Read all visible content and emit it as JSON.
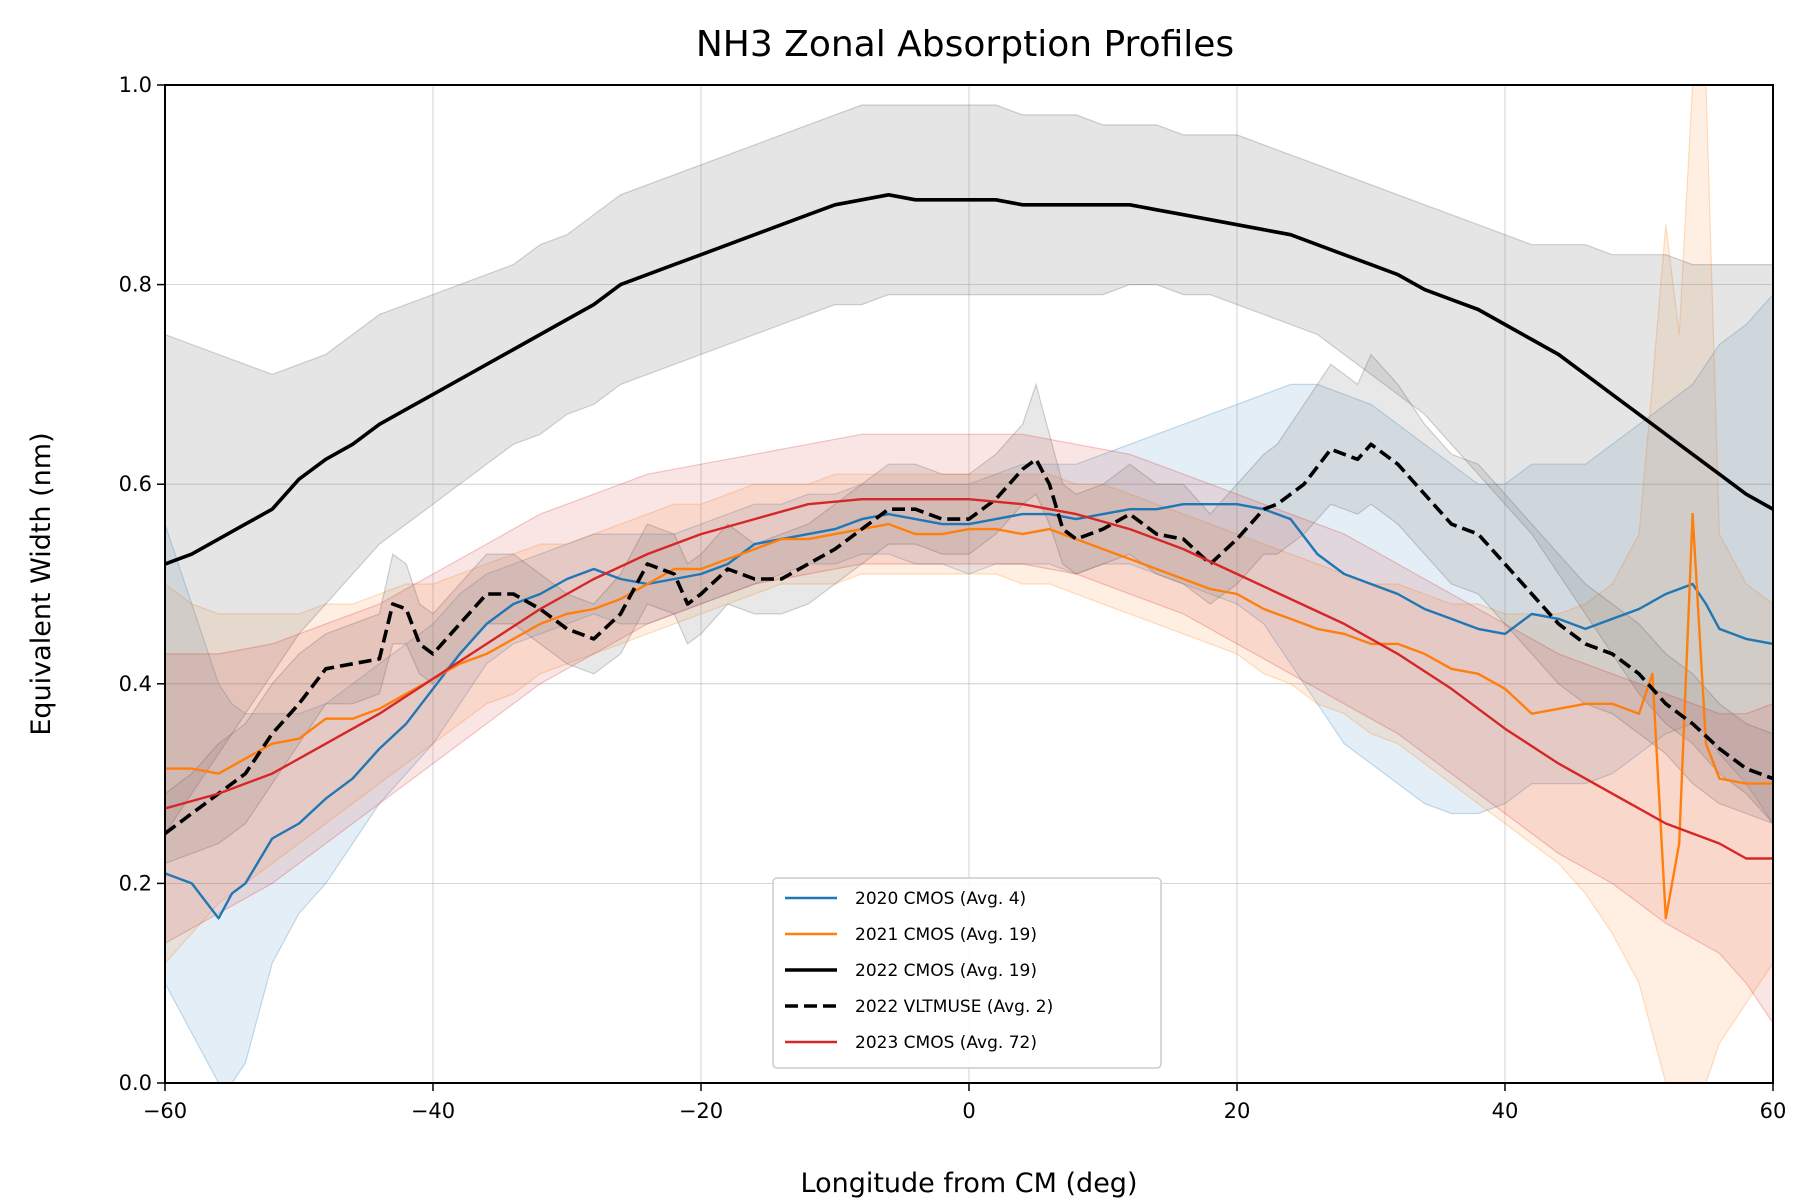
{
  "chart_data": {
    "type": "line",
    "title": "NH3 Zonal Absorption Profiles",
    "xlabel": "Longitude from CM (deg)",
    "ylabel": "Equivalent Width (nm)",
    "xlim": [
      -60,
      60
    ],
    "ylim": [
      0.0,
      1.0
    ],
    "xticks": [
      -60,
      -40,
      -20,
      0,
      20,
      40,
      60
    ],
    "xtick_labels": [
      "−60",
      "−40",
      "−20",
      "0",
      "20",
      "40",
      "60"
    ],
    "yticks": [
      0.0,
      0.2,
      0.4,
      0.6,
      0.8,
      1.0
    ],
    "ytick_labels": [
      "0.0",
      "0.2",
      "0.4",
      "0.6",
      "0.8",
      "1.0"
    ],
    "grid": true,
    "legend_position": "bottom-center",
    "series": [
      {
        "name": "2020 CMOS (Avg. 4)",
        "color": "#1f77b4",
        "style": "solid",
        "x": [
          -60,
          -58,
          -56,
          -55,
          -54,
          -52,
          -50,
          -48,
          -46,
          -44,
          -42,
          -40,
          -38,
          -36,
          -34,
          -32,
          -30,
          -28,
          -26,
          -24,
          -22,
          -20,
          -18,
          -16,
          -14,
          -12,
          -10,
          -8,
          -6,
          -4,
          -2,
          0,
          2,
          4,
          6,
          8,
          10,
          12,
          14,
          16,
          18,
          20,
          22,
          24,
          26,
          28,
          30,
          32,
          34,
          36,
          38,
          40,
          42,
          44,
          46,
          48,
          50,
          52,
          54,
          55,
          56,
          58,
          60
        ],
        "y": [
          0.21,
          0.2,
          0.165,
          0.19,
          0.2,
          0.245,
          0.26,
          0.285,
          0.305,
          0.335,
          0.36,
          0.395,
          0.43,
          0.46,
          0.48,
          0.49,
          0.505,
          0.515,
          0.505,
          0.5,
          0.505,
          0.51,
          0.52,
          0.54,
          0.545,
          0.55,
          0.555,
          0.565,
          0.57,
          0.565,
          0.56,
          0.56,
          0.565,
          0.57,
          0.57,
          0.565,
          0.57,
          0.575,
          0.575,
          0.58,
          0.58,
          0.58,
          0.575,
          0.565,
          0.53,
          0.51,
          0.5,
          0.49,
          0.475,
          0.465,
          0.455,
          0.45,
          0.47,
          0.465,
          0.455,
          0.465,
          0.475,
          0.49,
          0.5,
          0.48,
          0.455,
          0.445,
          0.44
        ],
        "band_lower": [
          0.1,
          0.05,
          0.0,
          0.0,
          0.02,
          0.12,
          0.17,
          0.2,
          0.24,
          0.28,
          0.31,
          0.34,
          0.38,
          0.42,
          0.44,
          0.45,
          0.46,
          0.47,
          0.46,
          0.46,
          0.47,
          0.48,
          0.49,
          0.5,
          0.51,
          0.52,
          0.52,
          0.53,
          0.53,
          0.52,
          0.52,
          0.51,
          0.52,
          0.52,
          0.52,
          0.51,
          0.52,
          0.52,
          0.51,
          0.5,
          0.49,
          0.48,
          0.46,
          0.42,
          0.38,
          0.34,
          0.32,
          0.3,
          0.28,
          0.27,
          0.27,
          0.28,
          0.3,
          0.3,
          0.3,
          0.31,
          0.33,
          0.35,
          0.36,
          0.35,
          0.33,
          0.3,
          0.26
        ],
        "band_upper": [
          0.56,
          0.48,
          0.4,
          0.38,
          0.37,
          0.37,
          0.37,
          0.38,
          0.4,
          0.42,
          0.44,
          0.46,
          0.49,
          0.51,
          0.52,
          0.53,
          0.54,
          0.55,
          0.55,
          0.55,
          0.55,
          0.56,
          0.57,
          0.58,
          0.58,
          0.59,
          0.59,
          0.6,
          0.6,
          0.6,
          0.6,
          0.6,
          0.61,
          0.62,
          0.62,
          0.62,
          0.63,
          0.64,
          0.65,
          0.66,
          0.67,
          0.68,
          0.69,
          0.7,
          0.7,
          0.69,
          0.68,
          0.66,
          0.64,
          0.62,
          0.6,
          0.6,
          0.62,
          0.62,
          0.62,
          0.64,
          0.66,
          0.68,
          0.7,
          0.72,
          0.74,
          0.76,
          0.79
        ]
      },
      {
        "name": "2021 CMOS (Avg. 19)",
        "color": "#ff7f0e",
        "style": "solid",
        "x": [
          -60,
          -58,
          -56,
          -54,
          -52,
          -50,
          -48,
          -46,
          -44,
          -42,
          -40,
          -38,
          -36,
          -34,
          -32,
          -30,
          -28,
          -26,
          -24,
          -22,
          -20,
          -18,
          -16,
          -14,
          -12,
          -10,
          -8,
          -6,
          -4,
          -2,
          0,
          2,
          4,
          6,
          8,
          10,
          12,
          14,
          16,
          18,
          20,
          22,
          24,
          26,
          28,
          30,
          32,
          34,
          36,
          38,
          40,
          42,
          44,
          46,
          48,
          50,
          51,
          52,
          53,
          54,
          55,
          56,
          58,
          60
        ],
        "y": [
          0.315,
          0.315,
          0.31,
          0.325,
          0.34,
          0.345,
          0.365,
          0.365,
          0.375,
          0.39,
          0.405,
          0.42,
          0.43,
          0.445,
          0.46,
          0.47,
          0.475,
          0.485,
          0.5,
          0.515,
          0.515,
          0.525,
          0.535,
          0.545,
          0.545,
          0.55,
          0.555,
          0.56,
          0.55,
          0.55,
          0.555,
          0.555,
          0.55,
          0.555,
          0.545,
          0.535,
          0.525,
          0.515,
          0.505,
          0.495,
          0.49,
          0.475,
          0.465,
          0.455,
          0.45,
          0.44,
          0.44,
          0.43,
          0.415,
          0.41,
          0.395,
          0.37,
          0.375,
          0.38,
          0.38,
          0.37,
          0.41,
          0.165,
          0.24,
          0.57,
          0.34,
          0.305,
          0.3,
          0.3
        ],
        "band_lower": [
          0.12,
          0.15,
          0.18,
          0.2,
          0.22,
          0.24,
          0.26,
          0.28,
          0.3,
          0.32,
          0.34,
          0.36,
          0.38,
          0.39,
          0.41,
          0.42,
          0.43,
          0.44,
          0.45,
          0.46,
          0.47,
          0.48,
          0.49,
          0.5,
          0.5,
          0.5,
          0.51,
          0.51,
          0.51,
          0.51,
          0.51,
          0.51,
          0.5,
          0.5,
          0.49,
          0.48,
          0.47,
          0.46,
          0.45,
          0.44,
          0.43,
          0.41,
          0.4,
          0.38,
          0.37,
          0.35,
          0.34,
          0.32,
          0.3,
          0.28,
          0.26,
          0.24,
          0.22,
          0.19,
          0.15,
          0.1,
          0.05,
          0.0,
          0.0,
          0.0,
          0.0,
          0.04,
          0.08,
          0.12
        ],
        "band_upper": [
          0.5,
          0.48,
          0.47,
          0.47,
          0.47,
          0.47,
          0.48,
          0.48,
          0.49,
          0.5,
          0.5,
          0.51,
          0.52,
          0.53,
          0.54,
          0.54,
          0.55,
          0.56,
          0.57,
          0.58,
          0.58,
          0.59,
          0.6,
          0.6,
          0.6,
          0.61,
          0.61,
          0.61,
          0.61,
          0.61,
          0.61,
          0.61,
          0.61,
          0.61,
          0.6,
          0.6,
          0.59,
          0.58,
          0.57,
          0.56,
          0.55,
          0.54,
          0.53,
          0.52,
          0.51,
          0.5,
          0.5,
          0.49,
          0.48,
          0.48,
          0.47,
          0.47,
          0.47,
          0.48,
          0.5,
          0.55,
          0.7,
          0.86,
          0.75,
          1.0,
          1.0,
          0.55,
          0.5,
          0.48
        ]
      },
      {
        "name": "2022 CMOS (Avg. 19)",
        "color": "#000000",
        "style": "solid-thick",
        "x": [
          -60,
          -58,
          -56,
          -54,
          -52,
          -50,
          -48,
          -46,
          -44,
          -42,
          -40,
          -38,
          -36,
          -34,
          -32,
          -30,
          -28,
          -26,
          -24,
          -22,
          -20,
          -18,
          -16,
          -14,
          -12,
          -10,
          -8,
          -6,
          -4,
          -2,
          0,
          2,
          4,
          6,
          8,
          10,
          12,
          14,
          16,
          18,
          20,
          22,
          24,
          26,
          28,
          30,
          32,
          34,
          36,
          38,
          40,
          42,
          44,
          46,
          48,
          50,
          52,
          54,
          56,
          58,
          60
        ],
        "y": [
          0.52,
          0.53,
          0.545,
          0.56,
          0.575,
          0.605,
          0.625,
          0.64,
          0.66,
          0.675,
          0.69,
          0.705,
          0.72,
          0.735,
          0.75,
          0.765,
          0.78,
          0.8,
          0.81,
          0.82,
          0.83,
          0.84,
          0.85,
          0.86,
          0.87,
          0.88,
          0.885,
          0.89,
          0.885,
          0.885,
          0.885,
          0.885,
          0.88,
          0.88,
          0.88,
          0.88,
          0.88,
          0.875,
          0.87,
          0.865,
          0.86,
          0.855,
          0.85,
          0.84,
          0.83,
          0.82,
          0.81,
          0.795,
          0.785,
          0.775,
          0.76,
          0.745,
          0.73,
          0.71,
          0.69,
          0.67,
          0.65,
          0.63,
          0.61,
          0.59,
          0.575
        ],
        "band_lower": [
          0.25,
          0.29,
          0.33,
          0.37,
          0.41,
          0.45,
          0.48,
          0.51,
          0.54,
          0.56,
          0.58,
          0.6,
          0.62,
          0.64,
          0.65,
          0.67,
          0.68,
          0.7,
          0.71,
          0.72,
          0.73,
          0.74,
          0.75,
          0.76,
          0.77,
          0.78,
          0.78,
          0.79,
          0.79,
          0.79,
          0.79,
          0.79,
          0.79,
          0.79,
          0.79,
          0.79,
          0.8,
          0.8,
          0.79,
          0.79,
          0.78,
          0.77,
          0.76,
          0.75,
          0.73,
          0.71,
          0.69,
          0.67,
          0.64,
          0.61,
          0.58,
          0.55,
          0.51,
          0.47,
          0.43,
          0.39,
          0.36,
          0.34,
          0.31,
          0.29,
          0.26
        ],
        "band_upper": [
          0.75,
          0.74,
          0.73,
          0.72,
          0.71,
          0.72,
          0.73,
          0.75,
          0.77,
          0.78,
          0.79,
          0.8,
          0.81,
          0.82,
          0.84,
          0.85,
          0.87,
          0.89,
          0.9,
          0.91,
          0.92,
          0.93,
          0.94,
          0.95,
          0.96,
          0.97,
          0.98,
          0.98,
          0.98,
          0.98,
          0.98,
          0.98,
          0.97,
          0.97,
          0.97,
          0.96,
          0.96,
          0.96,
          0.95,
          0.95,
          0.95,
          0.94,
          0.93,
          0.92,
          0.91,
          0.9,
          0.89,
          0.88,
          0.87,
          0.86,
          0.85,
          0.84,
          0.84,
          0.84,
          0.83,
          0.83,
          0.83,
          0.82,
          0.82,
          0.82,
          0.82
        ]
      },
      {
        "name": "2022 VLTMUSE (Avg. 2)",
        "color": "#000000",
        "style": "dashed",
        "x": [
          -60,
          -58,
          -56,
          -54,
          -52,
          -50,
          -48,
          -46,
          -44,
          -43,
          -42,
          -41,
          -40,
          -38,
          -36,
          -34,
          -32,
          -30,
          -28,
          -26,
          -24,
          -22,
          -21,
          -20,
          -18,
          -16,
          -14,
          -12,
          -10,
          -8,
          -6,
          -4,
          -2,
          0,
          2,
          4,
          5,
          6,
          7,
          8,
          10,
          12,
          14,
          16,
          18,
          20,
          22,
          23,
          25,
          27,
          29,
          30,
          32,
          34,
          36,
          38,
          40,
          42,
          44,
          46,
          48,
          50,
          52,
          54,
          56,
          58,
          60
        ],
        "y": [
          0.25,
          0.27,
          0.29,
          0.31,
          0.35,
          0.38,
          0.415,
          0.42,
          0.425,
          0.48,
          0.475,
          0.44,
          0.43,
          0.46,
          0.49,
          0.49,
          0.475,
          0.455,
          0.445,
          0.47,
          0.52,
          0.51,
          0.48,
          0.49,
          0.515,
          0.505,
          0.505,
          0.52,
          0.535,
          0.555,
          0.575,
          0.575,
          0.565,
          0.565,
          0.585,
          0.615,
          0.625,
          0.6,
          0.555,
          0.545,
          0.555,
          0.57,
          0.55,
          0.545,
          0.52,
          0.545,
          0.575,
          0.58,
          0.6,
          0.635,
          0.625,
          0.64,
          0.62,
          0.59,
          0.56,
          0.55,
          0.52,
          0.49,
          0.46,
          0.44,
          0.43,
          0.41,
          0.38,
          0.36,
          0.335,
          0.315,
          0.305
        ],
        "band_lower": [
          0.22,
          0.23,
          0.24,
          0.26,
          0.3,
          0.34,
          0.38,
          0.38,
          0.39,
          0.44,
          0.44,
          0.41,
          0.4,
          0.43,
          0.46,
          0.46,
          0.44,
          0.42,
          0.41,
          0.43,
          0.48,
          0.47,
          0.44,
          0.45,
          0.48,
          0.47,
          0.47,
          0.48,
          0.5,
          0.52,
          0.54,
          0.54,
          0.53,
          0.53,
          0.55,
          0.58,
          0.59,
          0.56,
          0.52,
          0.51,
          0.52,
          0.53,
          0.51,
          0.5,
          0.48,
          0.5,
          0.53,
          0.53,
          0.55,
          0.58,
          0.57,
          0.58,
          0.56,
          0.53,
          0.5,
          0.49,
          0.46,
          0.43,
          0.4,
          0.38,
          0.37,
          0.35,
          0.33,
          0.3,
          0.28,
          0.27,
          0.26
        ],
        "band_upper": [
          0.29,
          0.31,
          0.34,
          0.36,
          0.4,
          0.43,
          0.45,
          0.46,
          0.47,
          0.53,
          0.52,
          0.48,
          0.47,
          0.5,
          0.53,
          0.53,
          0.51,
          0.49,
          0.48,
          0.51,
          0.56,
          0.55,
          0.52,
          0.53,
          0.56,
          0.54,
          0.55,
          0.56,
          0.58,
          0.6,
          0.62,
          0.62,
          0.61,
          0.61,
          0.63,
          0.66,
          0.7,
          0.65,
          0.6,
          0.59,
          0.6,
          0.62,
          0.6,
          0.6,
          0.57,
          0.6,
          0.63,
          0.64,
          0.68,
          0.72,
          0.7,
          0.73,
          0.7,
          0.66,
          0.63,
          0.62,
          0.59,
          0.56,
          0.53,
          0.5,
          0.48,
          0.46,
          0.43,
          0.41,
          0.38,
          0.36,
          0.35
        ]
      },
      {
        "name": "2023 CMOS (Avg. 72)",
        "color": "#d62728",
        "style": "solid",
        "x": [
          -60,
          -56,
          -52,
          -48,
          -44,
          -40,
          -36,
          -32,
          -28,
          -24,
          -20,
          -16,
          -12,
          -8,
          -4,
          0,
          4,
          8,
          12,
          16,
          20,
          24,
          28,
          32,
          36,
          40,
          44,
          48,
          52,
          56,
          58,
          60
        ],
        "y": [
          0.275,
          0.29,
          0.31,
          0.34,
          0.37,
          0.405,
          0.44,
          0.475,
          0.505,
          0.53,
          0.55,
          0.565,
          0.58,
          0.585,
          0.585,
          0.585,
          0.58,
          0.57,
          0.555,
          0.535,
          0.51,
          0.485,
          0.46,
          0.43,
          0.395,
          0.355,
          0.32,
          0.29,
          0.26,
          0.24,
          0.225,
          0.225
        ],
        "band_lower": [
          0.14,
          0.17,
          0.2,
          0.24,
          0.28,
          0.32,
          0.36,
          0.4,
          0.43,
          0.46,
          0.48,
          0.5,
          0.51,
          0.52,
          0.52,
          0.52,
          0.52,
          0.51,
          0.49,
          0.47,
          0.44,
          0.41,
          0.38,
          0.35,
          0.31,
          0.27,
          0.23,
          0.2,
          0.16,
          0.13,
          0.1,
          0.06
        ],
        "band_upper": [
          0.43,
          0.43,
          0.44,
          0.46,
          0.48,
          0.51,
          0.54,
          0.57,
          0.59,
          0.61,
          0.62,
          0.63,
          0.64,
          0.65,
          0.65,
          0.65,
          0.65,
          0.64,
          0.63,
          0.61,
          0.59,
          0.57,
          0.55,
          0.52,
          0.49,
          0.46,
          0.43,
          0.41,
          0.39,
          0.37,
          0.37,
          0.38
        ]
      }
    ]
  }
}
